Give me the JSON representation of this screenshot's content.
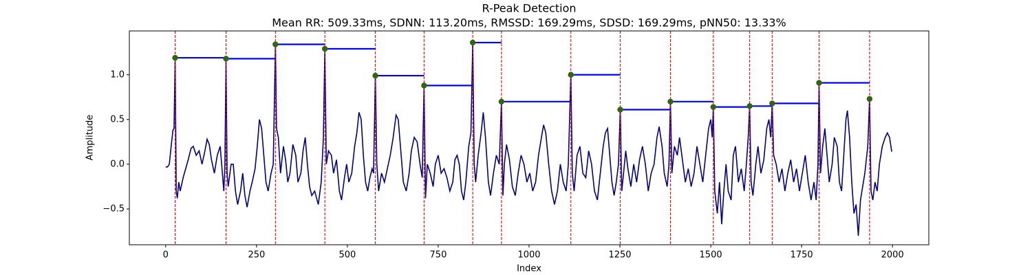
{
  "chart_data": {
    "type": "line",
    "title": "R-Peak Detection",
    "subtitle": "Mean RR: 509.33ms, SDNN: 113.20ms, RMSSD: 169.29ms, SDSD: 169.29ms, pNN50: 13.33%",
    "xlabel": "Index",
    "ylabel": "Amplitude",
    "xlim": [
      -100,
      2100
    ],
    "xticks": [
      0,
      250,
      500,
      750,
      1000,
      1250,
      1500,
      1750,
      2000
    ],
    "ylim": [
      -0.9,
      1.49
    ],
    "yticks": [
      {
        "value": -0.5,
        "label": "−0.5"
      },
      {
        "value": 0,
        "label": "0.0"
      },
      0.5,
      {
        "value": 1,
        "label": "1.0"
      }
    ],
    "signal": {
      "color": "#00008b",
      "x": [
        0,
        5,
        10,
        15,
        20,
        23,
        26,
        29,
        32,
        36,
        40,
        48,
        55,
        62,
        70,
        76,
        84,
        92,
        100,
        108,
        114,
        120,
        126,
        134,
        142,
        150,
        156,
        160,
        163,
        166,
        169,
        172,
        180,
        186,
        192,
        198,
        206,
        212,
        218,
        224,
        232,
        238,
        246,
        252,
        258,
        264,
        270,
        276,
        282,
        290,
        296,
        302,
        305,
        310,
        316,
        324,
        330,
        336,
        342,
        350,
        358,
        364,
        372,
        378,
        384,
        390,
        396,
        402,
        410,
        420,
        428,
        434,
        438,
        442,
        448,
        456,
        462,
        470,
        478,
        484,
        492,
        498,
        504,
        512,
        520,
        526,
        532,
        538,
        544,
        550,
        556,
        562,
        568,
        572,
        577,
        581,
        586,
        594,
        602,
        610,
        618,
        626,
        634,
        640,
        648,
        654,
        662,
        670,
        676,
        684,
        692,
        700,
        706,
        711,
        715,
        720,
        728,
        736,
        742,
        750,
        758,
        766,
        774,
        782,
        790,
        796,
        802,
        808,
        814,
        820,
        826,
        834,
        840,
        845,
        849,
        853,
        860,
        868,
        874,
        880,
        888,
        894,
        902,
        910,
        918,
        924,
        928,
        932,
        938,
        946,
        954,
        962,
        970,
        978,
        986,
        994,
        1002,
        1010,
        1018,
        1026,
        1034,
        1040,
        1046,
        1054,
        1062,
        1070,
        1078,
        1086,
        1094,
        1102,
        1108,
        1115,
        1119,
        1124,
        1132,
        1140,
        1148,
        1156,
        1164,
        1172,
        1180,
        1188,
        1196,
        1204,
        1210,
        1216,
        1222,
        1228,
        1234,
        1240,
        1246,
        1251,
        1255,
        1260,
        1266,
        1272,
        1280,
        1288,
        1296,
        1304,
        1312,
        1320,
        1328,
        1336,
        1344,
        1352,
        1358,
        1366,
        1372,
        1380,
        1385,
        1389,
        1393,
        1400,
        1408,
        1414,
        1422,
        1430,
        1438,
        1446,
        1454,
        1462,
        1470,
        1478,
        1486,
        1494,
        1500,
        1504,
        1507,
        1511,
        1518,
        1524,
        1530,
        1536,
        1542,
        1548,
        1556,
        1562,
        1568,
        1576,
        1584,
        1592,
        1598,
        1603,
        1607,
        1611,
        1616,
        1624,
        1630,
        1638,
        1646,
        1654,
        1660,
        1665,
        1669,
        1673,
        1680,
        1688,
        1696,
        1704,
        1712,
        1720,
        1728,
        1736,
        1744,
        1752,
        1760,
        1768,
        1776,
        1784,
        1790,
        1795,
        1798,
        1802,
        1808,
        1814,
        1820,
        1826,
        1834,
        1840,
        1848,
        1854,
        1860,
        1866,
        1872,
        1876,
        1882,
        1888,
        1894,
        1900,
        1906,
        1912,
        1918,
        1924,
        1932,
        1937,
        1941,
        1946,
        1952,
        1958,
        1964,
        1972,
        1980,
        1986,
        1992,
        1998
      ],
      "values": [
        -0.03,
        -0.03,
        0.0,
        0.2,
        0.38,
        0.4,
        1.19,
        -0.3,
        -0.38,
        -0.2,
        -0.3,
        -0.15,
        -0.05,
        0.05,
        0.18,
        0.2,
        0.1,
        0.15,
        0.0,
        0.15,
        0.28,
        0.22,
        0.05,
        -0.1,
        0.1,
        0.2,
        -0.1,
        -0.3,
        0.0,
        1.18,
        -0.1,
        -0.25,
        0.0,
        0.0,
        -0.3,
        -0.45,
        -0.3,
        -0.1,
        -0.35,
        -0.48,
        -0.3,
        -0.2,
        -0.05,
        0.2,
        0.5,
        0.4,
        0.1,
        -0.2,
        -0.3,
        -0.1,
        0.0,
        1.34,
        0.4,
        0.3,
        -0.1,
        0.2,
        0.05,
        -0.2,
        -0.1,
        0.22,
        0.1,
        -0.2,
        -0.1,
        0.15,
        0.3,
        0.0,
        -0.25,
        -0.35,
        -0.3,
        -0.45,
        -0.2,
        0.3,
        1.29,
        0.0,
        0.15,
        0.1,
        -0.1,
        0.05,
        -0.3,
        -0.4,
        -0.15,
        0.0,
        -0.2,
        -0.1,
        0.2,
        0.35,
        0.58,
        0.5,
        0.1,
        -0.2,
        -0.3,
        -0.15,
        -0.05,
        -0.1,
        0.99,
        0.0,
        -0.3,
        -0.1,
        -0.2,
        -0.05,
        0.1,
        0.3,
        0.55,
        0.5,
        0.1,
        -0.2,
        -0.3,
        -0.1,
        0.15,
        0.3,
        0.25,
        0.0,
        -0.15,
        0.88,
        -0.38,
        0.0,
        -0.1,
        -0.25,
        0.0,
        0.1,
        -0.1,
        -0.05,
        -0.15,
        -0.3,
        -0.2,
        0.05,
        0.1,
        0.0,
        -0.3,
        -0.4,
        -0.2,
        0.2,
        0.35,
        1.36,
        0.0,
        -0.2,
        0.1,
        0.35,
        0.58,
        0.3,
        -0.2,
        -0.35,
        -0.1,
        0.1,
        0.0,
        0.7,
        -0.35,
        0.0,
        0.22,
        0.05,
        -0.25,
        -0.35,
        -0.1,
        0.1,
        0.0,
        -0.2,
        -0.1,
        -0.3,
        -0.2,
        0.1,
        0.3,
        0.44,
        0.35,
        0.0,
        -0.3,
        -0.45,
        -0.3,
        0.0,
        -0.2,
        -0.3,
        0.0,
        1.0,
        -0.1,
        -0.3,
        0.1,
        0.2,
        -0.1,
        -0.15,
        0.15,
        0.0,
        -0.3,
        -0.4,
        -0.1,
        0.2,
        0.35,
        0.4,
        0.1,
        -0.2,
        -0.35,
        -0.2,
        0.0,
        0.61,
        -0.3,
        -0.1,
        0.15,
        -0.05,
        -0.25,
        0.0,
        -0.2,
        0.05,
        0.2,
        0.0,
        -0.3,
        -0.1,
        0.0,
        0.3,
        0.42,
        0.2,
        -0.1,
        -0.25,
        0.0,
        0.7,
        -0.1,
        0.2,
        0.1,
        0.3,
        0.05,
        -0.2,
        -0.05,
        -0.25,
        -0.1,
        0.2,
        0.0,
        -0.2,
        0.1,
        0.4,
        0.5,
        0.3,
        0.64,
        -0.3,
        -0.55,
        -0.2,
        -0.67,
        -0.3,
        0.0,
        -0.3,
        -0.4,
        0.1,
        0.2,
        -0.2,
        -0.05,
        -0.3,
        0.0,
        0.3,
        0.65,
        -0.2,
        -0.35,
        0.0,
        0.2,
        -0.1,
        0.05,
        0.4,
        0.5,
        0.3,
        0.68,
        0.1,
        0.0,
        -0.2,
        -0.05,
        -0.3,
        -0.1,
        0.05,
        -0.2,
        -0.05,
        -0.3,
        -0.1,
        0.1,
        -0.2,
        -0.4,
        -0.2,
        -0.4,
        0.0,
        0.91,
        -0.1,
        0.2,
        0.4,
        0.1,
        -0.2,
        0.0,
        0.3,
        0.2,
        -0.2,
        -0.3,
        0.1,
        0.5,
        0.6,
        0.3,
        -0.2,
        -0.55,
        -0.45,
        -0.8,
        -0.4,
        -0.25,
        -0.1,
        0.2,
        0.73,
        -0.3,
        -0.4,
        -0.2,
        -0.3,
        0.0,
        0.2,
        0.3,
        0.35,
        0.3,
        0.14
      ]
    },
    "peaks": {
      "color": "green",
      "edge_color": "#b22222",
      "line_color": "red",
      "rr_color": "blue",
      "x": [
        26,
        166,
        302,
        438,
        577,
        711,
        845,
        924,
        1115,
        1251,
        1389,
        1507,
        1607,
        1669,
        1798,
        1937
      ],
      "values": [
        1.19,
        1.18,
        1.34,
        1.29,
        0.99,
        0.88,
        1.36,
        0.7,
        1.0,
        0.61,
        0.7,
        0.64,
        0.65,
        0.68,
        0.91,
        0.73
      ]
    }
  }
}
